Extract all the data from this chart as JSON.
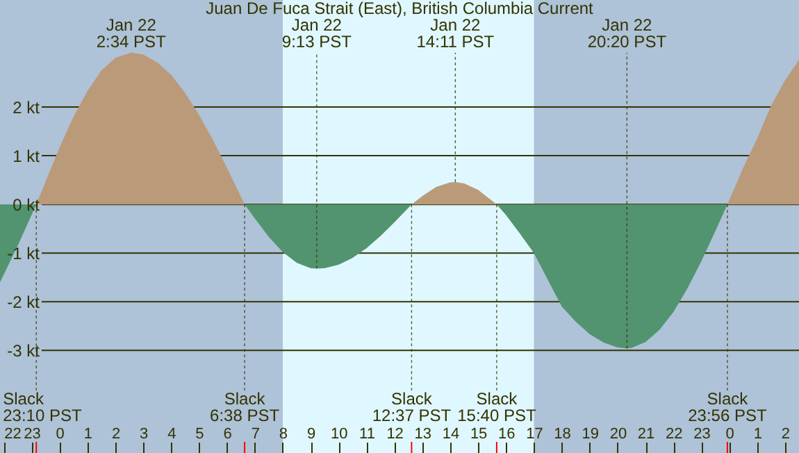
{
  "chart_data": {
    "type": "area",
    "title": "Juan De Fuca Strait (East), British Columbia Current",
    "x": [
      "--01-21T21:52",
      "--01-21T22:30",
      "--01-21T23:10",
      "--01-22T00:00",
      "--01-22T00:30",
      "--01-22T01:00",
      "--01-22T01:30",
      "--01-22T02:00",
      "--01-22T02:34",
      "--01-22T03:00",
      "--01-22T03:30",
      "--01-22T04:00",
      "--01-22T04:30",
      "--01-22T05:00",
      "--01-22T05:30",
      "--01-22T06:00",
      "--01-22T06:38",
      "--01-22T07:00",
      "--01-22T07:30",
      "--01-22T08:00",
      "--01-22T08:30",
      "--01-22T09:00",
      "--01-22T09:13",
      "--01-22T09:30",
      "--01-22T10:00",
      "--01-22T10:30",
      "--01-22T11:00",
      "--01-22T11:30",
      "--01-22T12:00",
      "--01-22T12:37",
      "--01-22T13:00",
      "--01-22T13:30",
      "--01-22T14:00",
      "--01-22T14:11",
      "--01-22T14:30",
      "--01-22T15:00",
      "--01-22T15:40",
      "--01-22T16:00",
      "--01-22T16:30",
      "--01-22T17:00",
      "--01-22T17:30",
      "--01-22T18:00",
      "--01-22T18:30",
      "--01-22T19:00",
      "--01-22T19:30",
      "--01-22T20:00",
      "--01-22T20:20",
      "--01-22T20:30",
      "--01-22T21:00",
      "--01-22T21:30",
      "--01-22T22:00",
      "--01-22T22:30",
      "--01-22T23:00",
      "--01-22T23:30",
      "--01-22T23:56",
      "--01-23T00:30",
      "--01-23T01:00",
      "--01-23T01:30",
      "--01-23T02:00",
      "--01-23T02:30"
    ],
    "series": [
      {
        "color": "#bb9a7a",
        "values": [
          null,
          null,
          0,
          1.17,
          1.8,
          2.33,
          2.75,
          3.01,
          3.12,
          3.08,
          2.92,
          2.66,
          2.29,
          1.84,
          1.32,
          0.75,
          0,
          null,
          null,
          null,
          null,
          null,
          null,
          null,
          null,
          null,
          null,
          null,
          null,
          0,
          0.17,
          0.36,
          0.45,
          0.46,
          0.43,
          0.3,
          0,
          null,
          null,
          null,
          null,
          null,
          null,
          null,
          null,
          null,
          null,
          null,
          null,
          null,
          null,
          null,
          null,
          null,
          0,
          0.75,
          1.35,
          2.03,
          2.55,
          2.97
        ]
      },
      {
        "color": "#51946f",
        "values": [
          -1.6,
          -0.85,
          0,
          null,
          null,
          null,
          null,
          null,
          null,
          null,
          null,
          null,
          null,
          null,
          null,
          null,
          0,
          -0.29,
          -0.67,
          -0.98,
          -1.2,
          -1.31,
          -1.32,
          -1.31,
          -1.24,
          -1.1,
          -0.9,
          -0.65,
          -0.37,
          0,
          null,
          null,
          null,
          null,
          null,
          null,
          0,
          -0.22,
          -0.6,
          -1.0,
          -1.55,
          -2.1,
          -2.41,
          -2.67,
          -2.84,
          -2.94,
          -2.96,
          -2.95,
          -2.83,
          -2.58,
          -2.21,
          -1.73,
          -1.17,
          -0.55,
          0,
          null,
          null,
          null,
          null,
          null
        ]
      }
    ],
    "xlim": [
      "--01-21T21:52",
      "--01-23T02:30"
    ],
    "xticks": [
      {
        "value": "--01-21T22:00",
        "label": "22"
      },
      {
        "value": "--01-21T23:00",
        "label": "23"
      },
      {
        "value": "--01-22T00:00",
        "label": "0"
      },
      {
        "value": "--01-22T01:00",
        "label": "1"
      },
      {
        "value": "--01-22T02:00",
        "label": "2"
      },
      {
        "value": "--01-22T03:00",
        "label": "3"
      },
      {
        "value": "--01-22T04:00",
        "label": "4"
      },
      {
        "value": "--01-22T05:00",
        "label": "5"
      },
      {
        "value": "--01-22T06:00",
        "label": "6"
      },
      {
        "value": "--01-22T07:00",
        "label": "7"
      },
      {
        "value": "--01-22T08:00",
        "label": "8"
      },
      {
        "value": "--01-22T09:00",
        "label": "9"
      },
      {
        "value": "--01-22T10:00",
        "label": "10"
      },
      {
        "value": "--01-22T11:00",
        "label": "11"
      },
      {
        "value": "--01-22T12:00",
        "label": "12"
      },
      {
        "value": "--01-22T13:00",
        "label": "13"
      },
      {
        "value": "--01-22T14:00",
        "label": "14"
      },
      {
        "value": "--01-22T15:00",
        "label": "15"
      },
      {
        "value": "--01-22T16:00",
        "label": "16"
      },
      {
        "value": "--01-22T17:00",
        "label": "17"
      },
      {
        "value": "--01-22T18:00",
        "label": "18"
      },
      {
        "value": "--01-22T19:00",
        "label": "19"
      },
      {
        "value": "--01-22T20:00",
        "label": "20"
      },
      {
        "value": "--01-22T21:00",
        "label": "21"
      },
      {
        "value": "--01-22T22:00",
        "label": "22"
      },
      {
        "value": "--01-22T23:00",
        "label": "23"
      },
      {
        "value": "--01-23T00:00",
        "label": "0"
      },
      {
        "value": "--01-23T01:00",
        "label": "1"
      },
      {
        "value": "--01-23T02:00",
        "label": "2"
      }
    ],
    "ylim": [
      -5.11,
      4.2
    ],
    "yticks": [
      {
        "value": 2,
        "label": "2 kt"
      },
      {
        "value": 1,
        "label": "1 kt"
      },
      {
        "value": 0,
        "label": "0 kt"
      },
      {
        "value": -1,
        "label": "-1 kt"
      },
      {
        "value": -2,
        "label": "-2 kt"
      },
      {
        "value": -3,
        "label": "-3 kt"
      }
    ],
    "grid": "y",
    "bands": [
      {
        "axis": "x",
        "from": "--01-21T21:52",
        "to": "--01-22T08:00",
        "color": "#aec2d8"
      },
      {
        "axis": "x",
        "from": "--01-22T08:00",
        "to": "--01-22T17:00",
        "color": "#dff7fe"
      },
      {
        "axis": "x",
        "from": "--01-22T17:00",
        "to": "--01-23T02:30",
        "color": "#aec2d8"
      }
    ],
    "annotations": [
      {
        "text": "Jan 22\n2:34 PST",
        "x": "--01-22T02:34",
        "y": 3.12
      },
      {
        "text": "Jan 22\n9:13 PST",
        "x": "--01-22T09:13",
        "y": -1.32
      },
      {
        "text": "Jan 22\n14:11 PST",
        "x": "--01-22T14:11",
        "y": 0.46
      },
      {
        "text": "Jan 22\n20:20 PST",
        "x": "--01-22T20:20",
        "y": -2.96
      },
      {
        "text": "Slack\n23:10 PST",
        "x": "--01-21T23:10",
        "y": 0
      },
      {
        "text": "Slack\n6:38 PST",
        "x": "--01-22T06:38",
        "y": 0
      },
      {
        "text": "Slack\n12:37 PST",
        "x": "--01-22T12:37",
        "y": 0
      },
      {
        "text": "Slack\n15:40 PST",
        "x": "--01-22T15:40",
        "y": 0
      },
      {
        "text": "Slack\n23:56 PST",
        "x": "--01-22T23:56",
        "y": 0
      }
    ]
  }
}
